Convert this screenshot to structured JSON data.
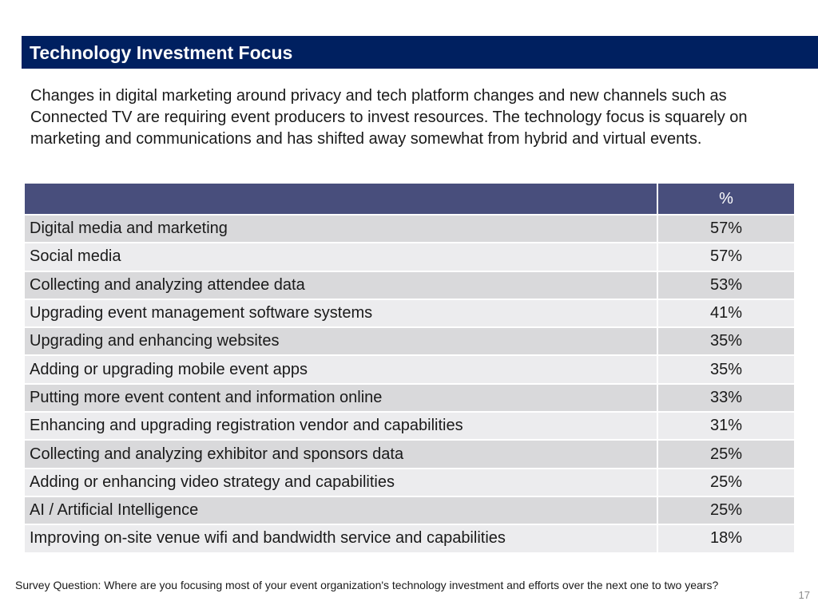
{
  "title": "Technology Investment Focus",
  "intro": "Changes in digital marketing around privacy and tech platform changes and new channels such as Connected TV are requiring event producers to invest resources. The technology focus is squarely on marketing and communications and has shifted away somewhat from hybrid and virtual events.",
  "table": {
    "header": {
      "label": "",
      "value": "%"
    },
    "rows": [
      {
        "label": "Digital media and marketing",
        "value": "57%"
      },
      {
        "label": "Social media",
        "value": "57%"
      },
      {
        "label": "Collecting and analyzing attendee data",
        "value": "53%"
      },
      {
        "label": "Upgrading event management software systems",
        "value": "41%"
      },
      {
        "label": "Upgrading and enhancing websites",
        "value": "35%"
      },
      {
        "label": "Adding or upgrading mobile event apps",
        "value": "35%"
      },
      {
        "label": "Putting more event content and information online",
        "value": "33%"
      },
      {
        "label": "Enhancing and upgrading registration vendor and capabilities",
        "value": "31%"
      },
      {
        "label": "Collecting and analyzing exhibitor and sponsors data",
        "value": "25%"
      },
      {
        "label": "Adding or enhancing video strategy and capabilities",
        "value": "25%"
      },
      {
        "label": "AI / Artificial Intelligence",
        "value": "25%"
      },
      {
        "label": "Improving on-site venue wifi and bandwidth service and capabilities",
        "value": "18%"
      }
    ]
  },
  "footnote": "Survey Question: Where are you focusing most of your event organization's technology investment and efforts over the next one to two years?",
  "page_number": "17",
  "colors": {
    "title_bar": "#002060",
    "table_header": "#484e7c",
    "row_dark": "#d9d9db",
    "row_light": "#ececee"
  }
}
